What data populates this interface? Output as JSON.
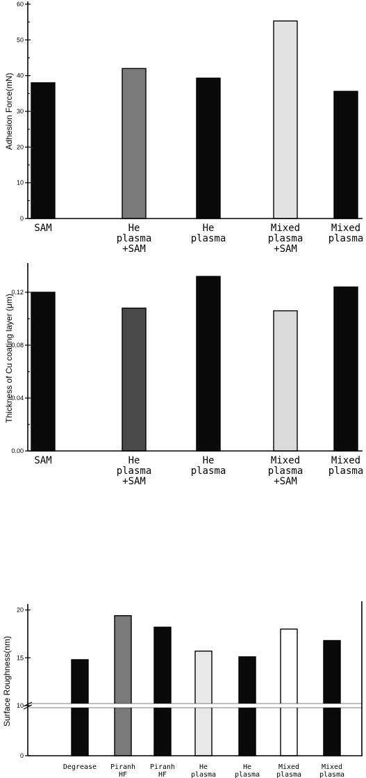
{
  "chart_data": [
    {
      "type": "bar",
      "ylabel": "Adhesion Force(mN)",
      "ylim": [
        0,
        60
      ],
      "yticks": [
        0,
        10,
        20,
        30,
        40,
        50,
        60
      ],
      "ytick_labels": [
        "0",
        "10",
        "20",
        "30",
        "40",
        "50",
        "60"
      ],
      "categories": [
        [
          "SAM"
        ],
        [
          "He",
          "plasma",
          "+SAM"
        ],
        [
          "He",
          "plasma"
        ],
        [
          "Mixed",
          "plasma",
          "+SAM"
        ],
        [
          "Mixed",
          "plasma"
        ]
      ],
      "values": [
        38,
        42,
        39.3,
        55.3,
        35.6
      ],
      "colors": [
        "#0a0a0a",
        "#7a7a7a",
        "#0a0a0a",
        "#e2e2e2",
        "#0a0a0a"
      ]
    },
    {
      "type": "bar",
      "ylabel": "Thickness of Cu coating layer (μm)",
      "ylim": [
        0,
        0.14
      ],
      "yticks": [
        0,
        0.04,
        0.08,
        0.12
      ],
      "ytick_labels": [
        "0.00",
        "0.04",
        "0.08",
        "0.12"
      ],
      "categories": [
        [
          "SAM"
        ],
        [
          "He",
          "plasma",
          "+SAM"
        ],
        [
          "He",
          "plasma"
        ],
        [
          "Mixed",
          "plasma",
          "+SAM"
        ],
        [
          "Mixed",
          "plasma"
        ]
      ],
      "values": [
        0.12,
        0.108,
        0.132,
        0.106,
        0.124
      ],
      "colors": [
        "#0a0a0a",
        "#4a4a4a",
        "#0a0a0a",
        "#dadada",
        "#0a0a0a"
      ]
    },
    {
      "type": "bar",
      "ylabel": "Surface Roughness(nm)",
      "ylim": [
        0,
        35
      ],
      "axis_break": [
        5,
        10
      ],
      "yticks": [
        0,
        10,
        15,
        20
      ],
      "ytick_labels": [
        "0",
        "10",
        "15",
        "20"
      ],
      "categories": [
        [
          "Degrease"
        ],
        [
          "Piranh",
          "HF"
        ],
        [
          "Piranh",
          "HF"
        ],
        [
          "He",
          "plasma"
        ],
        [
          "He",
          "plasma"
        ],
        [
          "Mixed",
          "plasma"
        ],
        [
          "Mixed",
          "plasma"
        ]
      ],
      "values": [
        14.8,
        19.4,
        18.2,
        15.7,
        15.1,
        18,
        16.8
      ],
      "colors": [
        "#0a0a0a",
        "#7a7a7a",
        "#0a0a0a",
        "#e8e8e8",
        "#0a0a0a",
        "#ffffff",
        "#0a0a0a"
      ]
    }
  ]
}
